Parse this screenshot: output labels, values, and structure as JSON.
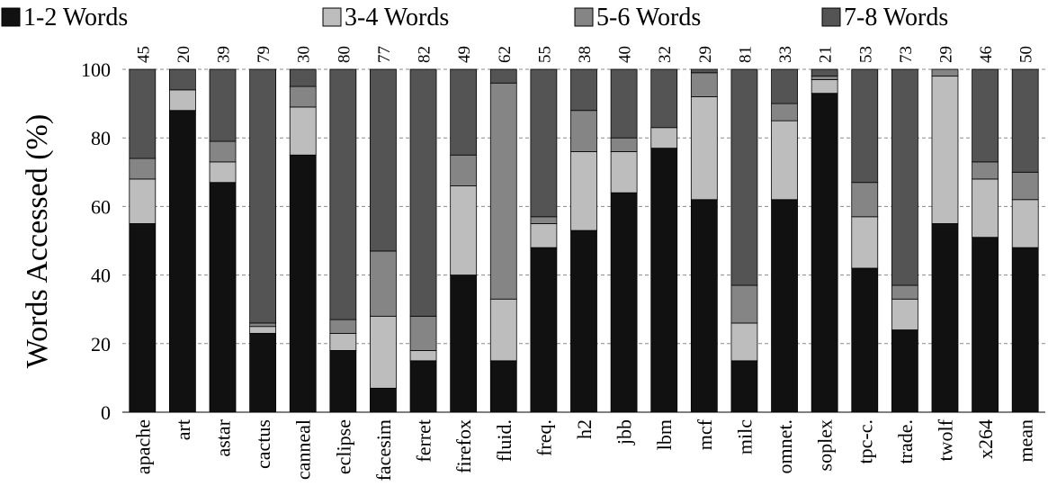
{
  "chart_data": {
    "type": "bar",
    "stacked": true,
    "title": "",
    "ylabel": "Words Accessed (%)",
    "xlabel": "",
    "ylim": [
      0,
      100
    ],
    "yticks": [
      0,
      20,
      40,
      60,
      80,
      100
    ],
    "grid": true,
    "legend_position": "top",
    "categories": [
      "apache",
      "art",
      "astar",
      "cactus",
      "canneal",
      "eclipse",
      "facesim",
      "ferret",
      "firefox",
      "fluid.",
      "freq.",
      "h2",
      "jbb",
      "lbm",
      "mcf",
      "milc",
      "omnet.",
      "soplex",
      "tpc-c.",
      "trade.",
      "twolf",
      "x264",
      "mean"
    ],
    "top_labels": [
      "45",
      "20",
      "39",
      "79",
      "30",
      "80",
      "77",
      "82",
      "49",
      "62",
      "55",
      "38",
      "40",
      "32",
      "29",
      "81",
      "33",
      "21",
      "53",
      "73",
      "29",
      "46",
      "50"
    ],
    "series": [
      {
        "name": "1-2 Words",
        "color": "#111111",
        "values": [
          55,
          88,
          67,
          23,
          75,
          18,
          7,
          15,
          40,
          15,
          48,
          53,
          64,
          77,
          62,
          15,
          62,
          93,
          42,
          24,
          55,
          51,
          48
        ]
      },
      {
        "name": "3-4 Words",
        "color": "#bdbdbd",
        "values": [
          13,
          6,
          6,
          2,
          14,
          5,
          21,
          3,
          26,
          18,
          7,
          23,
          12,
          6,
          30,
          11,
          23,
          4,
          15,
          9,
          43,
          17,
          14
        ]
      },
      {
        "name": "5-6 Words",
        "color": "#858585",
        "values": [
          6,
          0,
          6,
          1,
          6,
          4,
          19,
          10,
          9,
          63,
          2,
          12,
          4,
          0,
          7,
          11,
          5,
          1,
          10,
          4,
          2,
          5,
          8
        ]
      },
      {
        "name": "7-8 Words",
        "color": "#545454",
        "values": [
          26,
          6,
          21,
          74,
          5,
          73,
          53,
          72,
          25,
          4,
          43,
          12,
          20,
          17,
          1,
          63,
          10,
          2,
          33,
          63,
          0,
          27,
          30
        ]
      }
    ]
  }
}
